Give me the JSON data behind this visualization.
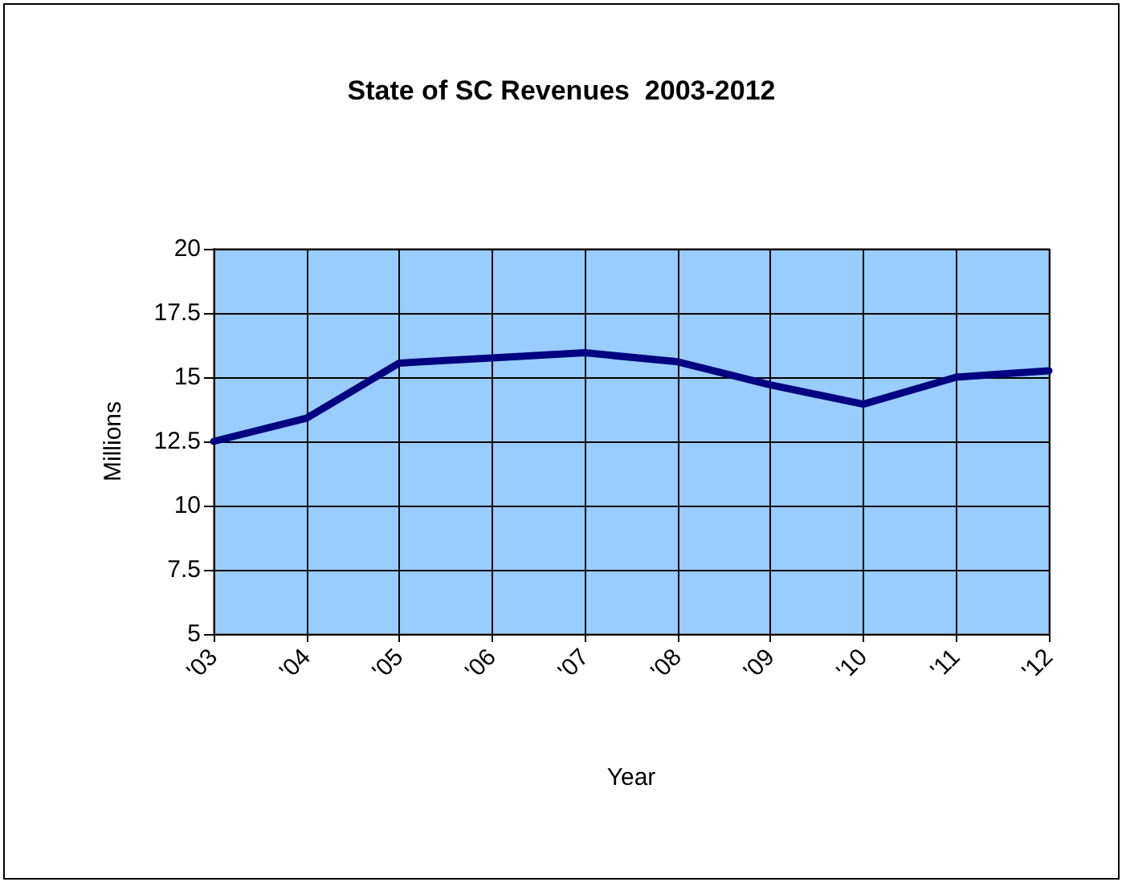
{
  "chart_data": {
    "type": "line",
    "title": "State of SC Revenues  2003-2012",
    "xlabel": "Year",
    "ylabel": "Millions",
    "categories": [
      "'03",
      "'04",
      "'05",
      "'06",
      "'07",
      "'08",
      "'09",
      "'10",
      "'11",
      "'12"
    ],
    "series": [
      {
        "color": "#000080",
        "values": [
          12.5,
          13.4,
          15.55,
          15.75,
          15.95,
          15.6,
          14.7,
          13.95,
          15.0,
          15.25
        ]
      }
    ],
    "ylim": [
      5,
      20
    ],
    "yticks": [
      5,
      7.5,
      10,
      12.5,
      15,
      17.5,
      20
    ],
    "grid": true,
    "marker": "none",
    "line_style": "solid"
  }
}
